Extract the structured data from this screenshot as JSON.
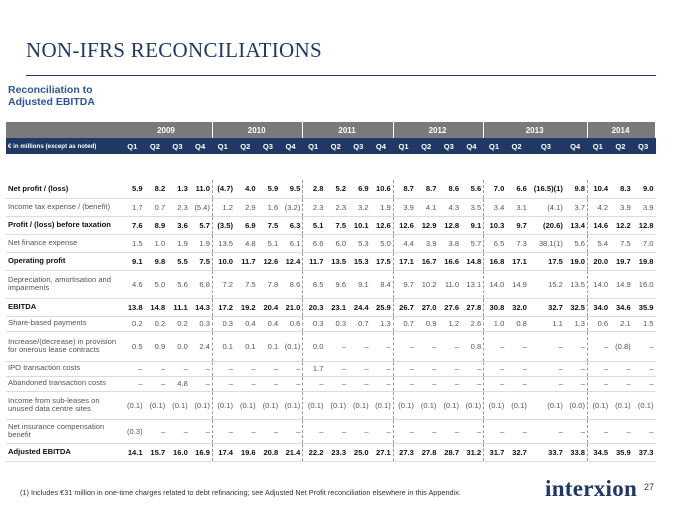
{
  "title": "NON-IFRS RECONCILIATIONS",
  "subtitle_line1": "Reconciliation to",
  "subtitle_line2": "Adjusted EBITDA",
  "header_label": "€ in millions (except as noted)",
  "years": [
    "2009",
    "2010",
    "2011",
    "2012",
    "2013",
    "2014"
  ],
  "quarters": [
    "Q1",
    "Q2",
    "Q3",
    "Q4",
    "Q1",
    "Q2",
    "Q3",
    "Q4",
    "Q1",
    "Q2",
    "Q3",
    "Q4",
    "Q1",
    "Q2",
    "Q3",
    "Q4",
    "Q1",
    "Q2",
    "Q3",
    "Q4",
    "Q1",
    "Q2",
    "Q3"
  ],
  "rows": [
    {
      "label": "Net profit / (loss)",
      "bold": true,
      "height": 18,
      "values": [
        "5.9",
        "8.2",
        "1.3",
        "11.0",
        "(4.7)",
        "4.0",
        "5.9",
        "9.5",
        "2.8",
        "5.2",
        "6.9",
        "10.6",
        "8.7",
        "8.7",
        "8.6",
        "5.6",
        "7.0",
        "6.6",
        "(16.5)(1)",
        "9.8",
        "10.4",
        "8.3",
        "9.0"
      ]
    },
    {
      "label": "Income tax expense / (benefit)",
      "bold": false,
      "height": 18,
      "values": [
        "1.7",
        "0.7",
        "2.3",
        "(5.4)",
        "1.2",
        "2.9",
        "1.6",
        "(3.2)",
        "2.3",
        "2.3",
        "3.2",
        "1.9",
        "3.9",
        "4.1",
        "4.3",
        "3.5",
        "3.4",
        "3.1",
        "(4.1)",
        "3.7",
        "4.2",
        "3.9",
        "3.9"
      ]
    },
    {
      "label": "Profit / (loss) before taxation",
      "bold": true,
      "height": 18,
      "values": [
        "7.6",
        "8.9",
        "3.6",
        "5.7",
        "(3.5)",
        "6.9",
        "7.5",
        "6.3",
        "5.1",
        "7.5",
        "10.1",
        "12.6",
        "12.6",
        "12.9",
        "12.8",
        "9.1",
        "10.3",
        "9.7",
        "(20.6)",
        "13.4",
        "14.6",
        "12.2",
        "12.8"
      ]
    },
    {
      "label": "Net finance expense",
      "bold": false,
      "height": 18,
      "values": [
        "1.5",
        "1.0",
        "1.9",
        "1.9",
        "13.5",
        "4.8",
        "5.1",
        "6.1",
        "6.6",
        "6.0",
        "5.3",
        "5.0",
        "4.4",
        "3.9",
        "3.8",
        "5.7",
        "6.5",
        "7.3",
        "38.1(1)",
        "5.6",
        "5.4",
        "7.5",
        "7.0"
      ]
    },
    {
      "label": "Operating profit",
      "bold": true,
      "height": 18,
      "values": [
        "9.1",
        "9.8",
        "5.5",
        "7.5",
        "10.0",
        "11.7",
        "12.6",
        "12.4",
        "11.7",
        "13.5",
        "15.3",
        "17.5",
        "17.1",
        "16.7",
        "16.6",
        "14.8",
        "16.8",
        "17.1",
        "17.5",
        "19.0",
        "20.0",
        "19.7",
        "19.8"
      ]
    },
    {
      "label": "Depreciation, amortisation and impairments",
      "bold": false,
      "height": 28,
      "values": [
        "4.6",
        "5.0",
        "5.6",
        "6.8",
        "7.2",
        "7.5",
        "7.8",
        "8.6",
        "8.5",
        "9.6",
        "9.1",
        "8.4",
        "9.7",
        "10.2",
        "11.0",
        "13.1",
        "14.0",
        "14.9",
        "15.2",
        "13.5",
        "14.0",
        "14.9",
        "16.0"
      ]
    },
    {
      "label": "EBITDA",
      "bold": true,
      "height": 18,
      "values": [
        "13.8",
        "14.8",
        "11.1",
        "14.3",
        "17.2",
        "19.2",
        "20.4",
        "21.0",
        "20.3",
        "23.1",
        "24.4",
        "25.9",
        "26.7",
        "27.0",
        "27.6",
        "27.8",
        "30.8",
        "32.0",
        "32.7",
        "32.5",
        "34.0",
        "34.6",
        "35.9"
      ]
    },
    {
      "label": "Share-based payments",
      "bold": false,
      "height": 15,
      "values": [
        "0.2",
        "0.2",
        "0.2",
        "0.3",
        "0.3",
        "0.4",
        "0.4",
        "0.6",
        "0.3",
        "0.3",
        "0.7",
        "1.3",
        "0.7",
        "0.9",
        "1.2",
        "2.6",
        "1.0",
        "0.8",
        "1.1",
        "1.3",
        "0.6",
        "2.1",
        "1.5"
      ]
    },
    {
      "label": "Increase/(decrease) in provision for onerous lease contracts",
      "bold": false,
      "height": 30,
      "values": [
        "0.5",
        "0.9",
        "0.0",
        "2.4",
        "0.1",
        "0.1",
        "0.1",
        "(0.1)",
        "0.0",
        "–",
        "–",
        "–",
        "–",
        "–",
        "–",
        "0.8",
        "–",
        "–",
        "–",
        "–",
        "–",
        "(0.8)",
        "–"
      ]
    },
    {
      "label": "IPO transaction costs",
      "bold": false,
      "height": 15,
      "values": [
        "–",
        "–",
        "–",
        "–",
        "–",
        "–",
        "–",
        "–",
        "1.7",
        "–",
        "–",
        "–",
        "–",
        "–",
        "–",
        "–",
        "–",
        "–",
        "–",
        "–",
        "–",
        "–",
        "–"
      ]
    },
    {
      "label": "Abandoned transaction costs",
      "bold": false,
      "height": 15,
      "values": [
        "–",
        "–",
        "4.8",
        "–",
        "–",
        "–",
        "–",
        "–",
        "–",
        "–",
        "–",
        "–",
        "–",
        "–",
        "–",
        "–",
        "–",
        "–",
        "–",
        "–",
        "–",
        "–",
        "–"
      ]
    },
    {
      "label": "Income from sub-leases on unused data centre sites",
      "bold": false,
      "height": 28,
      "values": [
        "(0.1)",
        "(0.1)",
        "(0.1)",
        "(0.1)",
        "(0.1)",
        "(0.1)",
        "(0.1)",
        "(0.1)",
        "(0.1)",
        "(0.1)",
        "(0.1)",
        "(0.1)",
        "(0.1)",
        "(0.1)",
        "(0.1)",
        "(0.1)",
        "(0.1)",
        "(0.1)",
        "(0.1)",
        "(0.0)",
        "(0.1)",
        "(0.1)",
        "(0.1)"
      ]
    },
    {
      "label": "Net insurance compensation benefit",
      "bold": false,
      "height": 24,
      "values": [
        "(0.3)",
        "–",
        "–",
        "–",
        "–",
        "–",
        "–",
        "–",
        "–",
        "–",
        "–",
        "–",
        "–",
        "–",
        "–",
        "–",
        "–",
        "–",
        "–",
        "–",
        "–",
        "–",
        "–"
      ]
    },
    {
      "label": "Adjusted EBITDA",
      "bold": true,
      "height": 18,
      "values": [
        "14.1",
        "15.7",
        "16.0",
        "16.9",
        "17.4",
        "19.6",
        "20.8",
        "21.4",
        "22.2",
        "23.3",
        "25.0",
        "27.1",
        "27.3",
        "27.8",
        "28.7",
        "31.2",
        "31.7",
        "32.7",
        "33.7",
        "33.8",
        "34.5",
        "35.9",
        "37.3"
      ]
    }
  ],
  "footnote": "(1)     Includes €31 million in one-time charges related to debt refinancing; see Adjusted Net Profit reconciliation elsewhere in this Appendix.",
  "logo_text": "interxion",
  "page_number": "27",
  "colors": {
    "navy": "#1f3864",
    "year_band": "#7a7a7a",
    "accent_blue": "#2e5597"
  }
}
